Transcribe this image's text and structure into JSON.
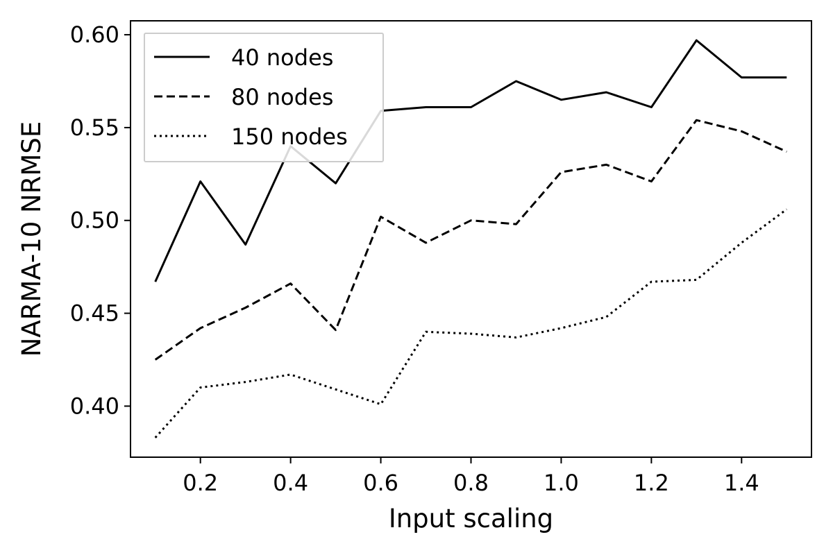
{
  "chart_data": {
    "type": "line",
    "xlabel": "Input scaling",
    "ylabel": "NARMA-10 NRMSE",
    "xlim": [
      0.045,
      1.555
    ],
    "ylim": [
      0.3725,
      0.6075
    ],
    "xticks": [
      0.2,
      0.4,
      0.6,
      0.8,
      1.0,
      1.2,
      1.4
    ],
    "xtick_labels": [
      "0.2",
      "0.4",
      "0.6",
      "0.8",
      "1.0",
      "1.2",
      "1.4"
    ],
    "yticks": [
      0.4,
      0.45,
      0.5,
      0.55,
      0.6
    ],
    "ytick_labels": [
      "0.40",
      "0.45",
      "0.50",
      "0.55",
      "0.60"
    ],
    "grid": false,
    "legend_position": "upper-left",
    "x": [
      0.1,
      0.2,
      0.3,
      0.4,
      0.5,
      0.6,
      0.7,
      0.8,
      0.9,
      1.0,
      1.1,
      1.2,
      1.3,
      1.4,
      1.5
    ],
    "series": [
      {
        "name": "40 nodes",
        "style": "solid",
        "color": "#000000",
        "values": [
          0.467,
          0.521,
          0.487,
          0.54,
          0.52,
          0.559,
          0.561,
          0.561,
          0.575,
          0.565,
          0.569,
          0.561,
          0.597,
          0.577,
          0.577
        ]
      },
      {
        "name": "80 nodes",
        "style": "dashed",
        "color": "#000000",
        "values": [
          0.425,
          0.442,
          0.453,
          0.466,
          0.441,
          0.502,
          0.488,
          0.5,
          0.498,
          0.526,
          0.53,
          0.521,
          0.554,
          0.548,
          0.537
        ]
      },
      {
        "name": "150 nodes",
        "style": "dotted",
        "color": "#000000",
        "values": [
          0.383,
          0.41,
          0.413,
          0.417,
          0.409,
          0.401,
          0.44,
          0.439,
          0.437,
          0.442,
          0.448,
          0.467,
          0.468,
          0.488,
          0.506
        ]
      }
    ]
  }
}
